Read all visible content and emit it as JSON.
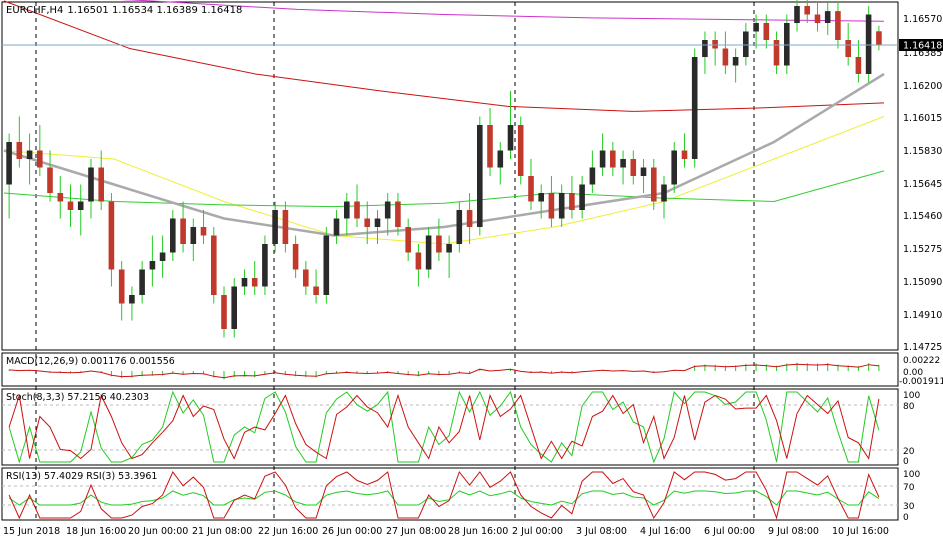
{
  "header": {
    "symbol": "EURCHF,H4",
    "ohlc": "1.16501 1.16534 1.16389 1.16418"
  },
  "price_axis": {
    "ticks": [
      "1.16570",
      "1.16385",
      "1.16200",
      "1.16015",
      "1.15830",
      "1.15645",
      "1.15460",
      "1.15275",
      "1.15090",
      "1.14910",
      "1.14725"
    ],
    "current_label": "1.16418"
  },
  "macd": {
    "label": "MACD(12,26,9) 0.001176 0.001556",
    "ticks": [
      "0.00222",
      "0.00",
      "-0.001911"
    ]
  },
  "stoch": {
    "label": "Stoch(8,3,3) 57.2156 40.2303",
    "ticks": [
      "100",
      "80",
      "20",
      "0"
    ]
  },
  "rsi": {
    "label": "RSI(13) 57.4029  RSI(3) 53.3961",
    "ticks": [
      "100",
      "70",
      "30",
      "0"
    ]
  },
  "time_axis": [
    "15 Jun 2018",
    "18 Jun 16:00",
    "20 Jun 00:00",
    "21 Jun 08:00",
    "22 Jun 16:00",
    "26 Jun 00:00",
    "27 Jun 08:00",
    "28 Jun 16:00",
    "2 Jul 00:00",
    "3 Jul 08:00",
    "4 Jul 16:00",
    "6 Jul 00:00",
    "9 Jul 08:00",
    "10 Jul 16:00"
  ],
  "colors": {
    "bull": "#2a2a2a",
    "bear": "#c0392b",
    "wick": "#22cc22",
    "ma_magenta": "#cc33cc",
    "ma_red": "#cc1111",
    "ma_yellow": "#eeee33",
    "ma_green": "#33cc33",
    "ma_gray": "#aaaaaa",
    "current_label_bg": "#000000"
  },
  "chart_data": {
    "type": "candlestick",
    "symbol": "EURCHF",
    "timeframe": "H4",
    "y_range": [
      1.1465,
      1.1665
    ],
    "ohlc": [
      [
        1.156,
        1.159,
        1.154,
        1.1585
      ],
      [
        1.1585,
        1.16,
        1.157,
        1.1575
      ],
      [
        1.1575,
        1.159,
        1.156,
        1.158
      ],
      [
        1.158,
        1.1595,
        1.1565,
        1.157
      ],
      [
        1.157,
        1.158,
        1.155,
        1.1555
      ],
      [
        1.1555,
        1.1565,
        1.154,
        1.155
      ],
      [
        1.155,
        1.156,
        1.1535,
        1.1545
      ],
      [
        1.1545,
        1.156,
        1.153,
        1.155
      ],
      [
        1.155,
        1.1575,
        1.154,
        1.157
      ],
      [
        1.157,
        1.158,
        1.1545,
        1.155
      ],
      [
        1.155,
        1.1555,
        1.15,
        1.151
      ],
      [
        1.151,
        1.1515,
        1.148,
        1.149
      ],
      [
        1.149,
        1.15,
        1.148,
        1.1495
      ],
      [
        1.1495,
        1.1515,
        1.149,
        1.151
      ],
      [
        1.151,
        1.153,
        1.15,
        1.1515
      ],
      [
        1.1515,
        1.153,
        1.1505,
        1.152
      ],
      [
        1.152,
        1.1545,
        1.1515,
        1.154
      ],
      [
        1.154,
        1.155,
        1.152,
        1.1525
      ],
      [
        1.1525,
        1.154,
        1.1515,
        1.1535
      ],
      [
        1.1535,
        1.1545,
        1.1525,
        1.153
      ],
      [
        1.153,
        1.1535,
        1.149,
        1.1495
      ],
      [
        1.1495,
        1.15,
        1.147,
        1.1475
      ],
      [
        1.1475,
        1.1505,
        1.147,
        1.15
      ],
      [
        1.15,
        1.151,
        1.1495,
        1.1505
      ],
      [
        1.1505,
        1.1515,
        1.1495,
        1.15
      ],
      [
        1.15,
        1.153,
        1.1495,
        1.1525
      ],
      [
        1.1525,
        1.155,
        1.152,
        1.1545
      ],
      [
        1.1545,
        1.155,
        1.152,
        1.1525
      ],
      [
        1.1525,
        1.153,
        1.1505,
        1.151
      ],
      [
        1.151,
        1.1515,
        1.1495,
        1.15
      ],
      [
        1.15,
        1.151,
        1.149,
        1.1495
      ],
      [
        1.1495,
        1.1535,
        1.149,
        1.153
      ],
      [
        1.153,
        1.1545,
        1.1525,
        1.154
      ],
      [
        1.154,
        1.1555,
        1.153,
        1.155
      ],
      [
        1.155,
        1.156,
        1.1535,
        1.154
      ],
      [
        1.154,
        1.155,
        1.1525,
        1.1535
      ],
      [
        1.1535,
        1.1545,
        1.1525,
        1.154
      ],
      [
        1.154,
        1.1555,
        1.153,
        1.155
      ],
      [
        1.155,
        1.1555,
        1.153,
        1.1535
      ],
      [
        1.1535,
        1.154,
        1.1515,
        1.152
      ],
      [
        1.152,
        1.1525,
        1.15,
        1.151
      ],
      [
        1.151,
        1.1535,
        1.1505,
        1.153
      ],
      [
        1.153,
        1.154,
        1.1515,
        1.152
      ],
      [
        1.152,
        1.153,
        1.1505,
        1.1525
      ],
      [
        1.1525,
        1.155,
        1.152,
        1.1545
      ],
      [
        1.1545,
        1.1555,
        1.1525,
        1.1535
      ],
      [
        1.1535,
        1.16,
        1.153,
        1.1595
      ],
      [
        1.1595,
        1.1605,
        1.1565,
        1.157
      ],
      [
        1.157,
        1.1585,
        1.156,
        1.158
      ],
      [
        1.158,
        1.1615,
        1.1575,
        1.1595
      ],
      [
        1.1595,
        1.16,
        1.156,
        1.1565
      ],
      [
        1.1565,
        1.1575,
        1.1545,
        1.155
      ],
      [
        1.155,
        1.156,
        1.154,
        1.1555
      ],
      [
        1.1555,
        1.1565,
        1.1535,
        1.154
      ],
      [
        1.154,
        1.156,
        1.1535,
        1.1555
      ],
      [
        1.1555,
        1.1565,
        1.154,
        1.1545
      ],
      [
        1.1545,
        1.1565,
        1.154,
        1.156
      ],
      [
        1.156,
        1.158,
        1.1555,
        1.157
      ],
      [
        1.157,
        1.159,
        1.1565,
        1.158
      ],
      [
        1.158,
        1.1585,
        1.1565,
        1.157
      ],
      [
        1.157,
        1.158,
        1.156,
        1.1575
      ],
      [
        1.1575,
        1.158,
        1.156,
        1.1565
      ],
      [
        1.1565,
        1.1575,
        1.1555,
        1.157
      ],
      [
        1.157,
        1.1575,
        1.1545,
        1.155
      ],
      [
        1.155,
        1.1565,
        1.154,
        1.156
      ],
      [
        1.156,
        1.1585,
        1.1555,
        1.158
      ],
      [
        1.158,
        1.159,
        1.157,
        1.1575
      ],
      [
        1.1575,
        1.164,
        1.157,
        1.1635
      ],
      [
        1.1635,
        1.165,
        1.1625,
        1.1645
      ],
      [
        1.1645,
        1.165,
        1.163,
        1.164
      ],
      [
        1.164,
        1.165,
        1.1625,
        1.163
      ],
      [
        1.163,
        1.164,
        1.162,
        1.1635
      ],
      [
        1.1635,
        1.1655,
        1.163,
        1.165
      ],
      [
        1.165,
        1.166,
        1.164,
        1.1655
      ],
      [
        1.1655,
        1.166,
        1.164,
        1.1645
      ],
      [
        1.1645,
        1.165,
        1.1625,
        1.163
      ],
      [
        1.163,
        1.166,
        1.1625,
        1.1655
      ],
      [
        1.1655,
        1.167,
        1.165,
        1.1665
      ],
      [
        1.1665,
        1.1672,
        1.1655,
        1.166
      ],
      [
        1.166,
        1.1668,
        1.165,
        1.1655
      ],
      [
        1.1655,
        1.1668,
        1.1648,
        1.1662
      ],
      [
        1.1662,
        1.1668,
        1.164,
        1.1645
      ],
      [
        1.1645,
        1.1655,
        1.163,
        1.1635
      ],
      [
        1.1635,
        1.1645,
        1.162,
        1.1625
      ],
      [
        1.1625,
        1.1665,
        1.162,
        1.166
      ],
      [
        1.16501,
        1.16534,
        1.16389,
        1.16418
      ]
    ],
    "moving_averages": {
      "magenta": [
        1.1672,
        1.1668,
        1.1663,
        1.166,
        1.1658,
        1.1657,
        1.1656
      ],
      "red": [
        1.1668,
        1.164,
        1.1625,
        1.1615,
        1.1606,
        1.1603,
        1.1605,
        1.1608
      ],
      "yellow": [
        1.158,
        1.1575,
        1.155,
        1.153,
        1.1525,
        1.1535,
        1.155,
        1.1575,
        1.16
      ],
      "green": [
        1.1555,
        1.155,
        1.1548,
        1.1547,
        1.1549,
        1.1555,
        1.1552,
        1.155,
        1.1568
      ],
      "gray": [
        1.158,
        1.156,
        1.154,
        1.153,
        1.1535,
        1.1545,
        1.1555,
        1.1585,
        1.1625
      ]
    },
    "indicators": {
      "macd": {
        "params": [
          12,
          26,
          9
        ],
        "main": 0.001176,
        "signal": 0.001556,
        "y_range": [
          -0.001911,
          0.00222
        ]
      },
      "stoch": {
        "params": [
          8,
          3,
          3
        ],
        "k": 57.2156,
        "d": 40.2303,
        "levels": [
          80,
          20
        ]
      },
      "rsi": {
        "periods": [
          13,
          3
        ],
        "values": [
          57.4029,
          53.3961
        ],
        "levels": [
          70,
          30
        ]
      }
    }
  }
}
